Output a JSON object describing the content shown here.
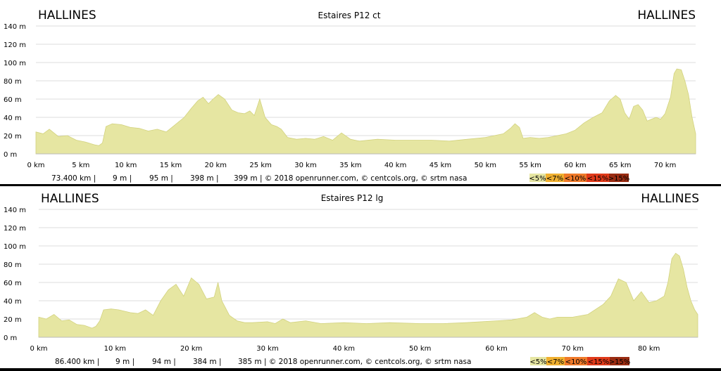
{
  "colors": {
    "fill": "#e6e6a2",
    "stroke": "#d2d27e",
    "grid": "#dddddd",
    "legend": [
      "#e6e6a2",
      "#f0b030",
      "#f07a2a",
      "#e03a1a",
      "#9a2c12"
    ]
  },
  "chart_data": [
    {
      "type": "area",
      "title": "Estaires P12 ct",
      "start_label": "HALLINES",
      "end_label": "HALLINES",
      "xlabel": "",
      "ylabel": "",
      "xlim": [
        0,
        73.4
      ],
      "ylim": [
        0,
        140
      ],
      "x_ticks": [
        0,
        5,
        10,
        15,
        20,
        25,
        30,
        35,
        40,
        45,
        50,
        55,
        60,
        65,
        70
      ],
      "x_tick_labels": [
        "0 km",
        "5 km",
        "10 km",
        "15 km",
        "20 km",
        "25 km",
        "30 km",
        "35 km",
        "40 km",
        "45 km",
        "50 km",
        "55 km",
        "60 km",
        "65 km",
        "70 km"
      ],
      "y_ticks": [
        0,
        20,
        40,
        60,
        80,
        100,
        120,
        140
      ],
      "y_tick_labels": [
        "0 m",
        "20 m",
        "40 m",
        "60 m",
        "80 m",
        "100 m",
        "120 m",
        "140 m"
      ],
      "grid": true,
      "series": [
        {
          "x": [
            0,
            0.8,
            1.5,
            2.5,
            3.5,
            4.5,
            5.5,
            6.5,
            7,
            7.4,
            7.8,
            8.5,
            9.5,
            10.5,
            11.5,
            12.5,
            13.5,
            14.5,
            15.5,
            16.5,
            17.3,
            18,
            18.6,
            19.2,
            19.7,
            20.3,
            21,
            21.8,
            22.5,
            23.2,
            23.8,
            24.3,
            24.9,
            25.5,
            26.2,
            26.8,
            27.3,
            28,
            29,
            30,
            31,
            32,
            33,
            34,
            35,
            36,
            38,
            40,
            42,
            44,
            46,
            48,
            50,
            51,
            52,
            52.8,
            53.3,
            53.8,
            54.2,
            55,
            56,
            57,
            58,
            59,
            60,
            61,
            62,
            63,
            63.8,
            64.5,
            65,
            65.5,
            66,
            66.5,
            67,
            67.5,
            68,
            68.5,
            69,
            69.5,
            70,
            70.6,
            71,
            71.3,
            71.8,
            72.2,
            72.6,
            73,
            73.4
          ],
          "y": [
            24,
            22,
            27,
            19,
            20,
            15,
            13,
            10,
            9,
            12,
            30,
            33,
            32,
            29,
            28,
            25,
            27,
            24,
            32,
            40,
            50,
            58,
            62,
            55,
            60,
            65,
            60,
            48,
            45,
            44,
            47,
            42,
            60,
            40,
            32,
            30,
            27,
            18,
            16,
            17,
            16,
            19,
            15,
            23,
            16,
            14,
            16,
            15,
            15,
            15,
            14,
            16,
            18,
            20,
            22,
            28,
            33,
            29,
            17,
            18,
            17,
            18,
            20,
            22,
            26,
            34,
            40,
            45,
            58,
            64,
            60,
            45,
            38,
            52,
            54,
            48,
            36,
            38,
            40,
            38,
            44,
            62,
            88,
            93,
            92,
            80,
            65,
            40,
            22
          ]
        }
      ],
      "stats": [
        "73.400 km |",
        "9 m |",
        "95 m |",
        "398 m |",
        "399 m | © 2018 openrunner.com, © centcols.org, © srtm nasa"
      ],
      "legend": [
        "<5%",
        "<7%",
        "<10%",
        "<15%",
        ">15%"
      ]
    },
    {
      "type": "area",
      "title": "Estaires P12 lg",
      "start_label": "HALLINES",
      "end_label": "HALLINES",
      "xlabel": "",
      "ylabel": "",
      "xlim": [
        0,
        86.4
      ],
      "ylim": [
        0,
        140
      ],
      "x_ticks": [
        0,
        10,
        20,
        30,
        40,
        50,
        60,
        70,
        80
      ],
      "x_tick_labels": [
        "0 km",
        "10 km",
        "20 km",
        "30 km",
        "40 km",
        "50 km",
        "60 km",
        "70 km",
        "80 km"
      ],
      "y_ticks": [
        0,
        20,
        40,
        60,
        80,
        100,
        120,
        140
      ],
      "y_tick_labels": [
        "0 m",
        "20 m",
        "40 m",
        "60 m",
        "80 m",
        "100 m",
        "120 m",
        "140 m"
      ],
      "grid": true,
      "series": [
        {
          "x": [
            0,
            1,
            2,
            3,
            4,
            5,
            6,
            7,
            7.5,
            8,
            8.5,
            9.5,
            10.5,
            12,
            13,
            14,
            15,
            16,
            17,
            18,
            19,
            20,
            21,
            22,
            23,
            23.5,
            24,
            25,
            26,
            27,
            28,
            30,
            31,
            32,
            33,
            35,
            37,
            40,
            43,
            46,
            50,
            53,
            56,
            60,
            62,
            64,
            65,
            66,
            67,
            68,
            70,
            72,
            74,
            75,
            76,
            77,
            78,
            79,
            80,
            81,
            82,
            82.5,
            83,
            83.5,
            84,
            84.5,
            85,
            85.5,
            86,
            86.4
          ],
          "y": [
            22,
            20,
            25,
            18,
            19,
            14,
            13,
            10,
            12,
            18,
            30,
            31,
            30,
            27,
            26,
            30,
            24,
            40,
            52,
            58,
            45,
            65,
            58,
            42,
            44,
            60,
            40,
            24,
            18,
            16,
            16,
            17,
            15,
            20,
            16,
            18,
            15,
            16,
            15,
            16,
            15,
            15,
            16,
            18,
            19,
            22,
            27,
            22,
            20,
            22,
            22,
            25,
            36,
            45,
            64,
            60,
            40,
            50,
            38,
            40,
            45,
            60,
            86,
            92,
            89,
            75,
            55,
            40,
            30,
            25
          ]
        }
      ],
      "stats": [
        "86.400 km |",
        "9 m |",
        "94 m |",
        "384 m |",
        "385 m | © 2018 openrunner.com, © centcols.org, © srtm nasa"
      ],
      "legend": [
        "<5%",
        "<7%",
        "<10%",
        "<15%",
        ">15%"
      ]
    }
  ]
}
